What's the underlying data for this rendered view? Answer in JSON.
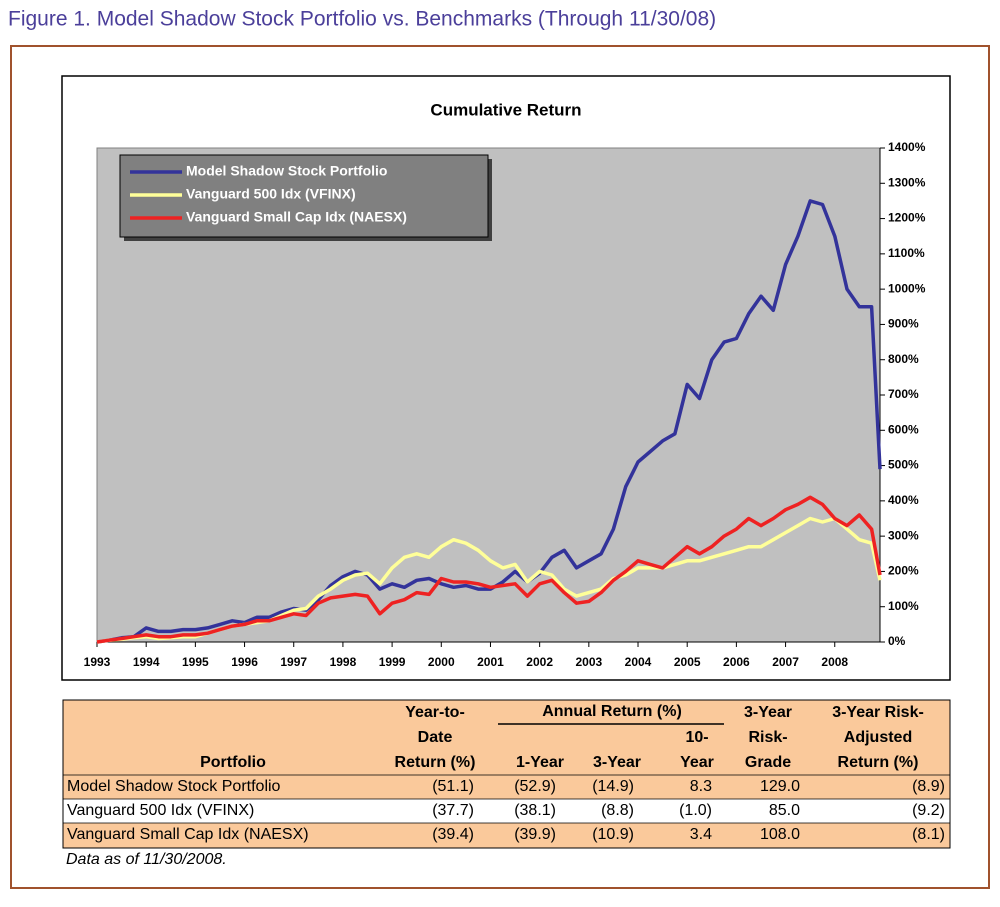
{
  "figure_title": "Figure 1. Model Shadow Stock Portfolio vs. Benchmarks (Through 11/30/08)",
  "chart_data": {
    "type": "line",
    "title": "Cumulative Return",
    "x": [
      1993,
      1993.25,
      1993.5,
      1993.75,
      1994,
      1994.25,
      1994.5,
      1994.75,
      1995,
      1995.25,
      1995.5,
      1995.75,
      1996,
      1996.25,
      1996.5,
      1996.75,
      1997,
      1997.25,
      1997.5,
      1997.75,
      1998,
      1998.25,
      1998.5,
      1998.75,
      1999,
      1999.25,
      1999.5,
      1999.75,
      2000,
      2000.25,
      2000.5,
      2000.75,
      2001,
      2001.25,
      2001.5,
      2001.75,
      2002,
      2002.25,
      2002.5,
      2002.75,
      2003,
      2003.25,
      2003.5,
      2003.75,
      2004,
      2004.25,
      2004.5,
      2004.75,
      2005,
      2005.25,
      2005.5,
      2005.75,
      2006,
      2006.25,
      2006.5,
      2006.75,
      2007,
      2007.25,
      2007.5,
      2007.75,
      2008,
      2008.25,
      2008.5,
      2008.75,
      2008.92
    ],
    "xlim": [
      1993,
      2008.92
    ],
    "xticks": [
      1993,
      1994,
      1995,
      1996,
      1997,
      1998,
      1999,
      2000,
      2001,
      2002,
      2003,
      2004,
      2005,
      2006,
      2007,
      2008
    ],
    "ylim": [
      0,
      1400
    ],
    "yticks": [
      {
        "value": 0,
        "label": "0%"
      },
      {
        "value": 100,
        "label": "100%"
      },
      {
        "value": 200,
        "label": "200%"
      },
      {
        "value": 300,
        "label": "300%"
      },
      {
        "value": 400,
        "label": "400%"
      },
      {
        "value": 500,
        "label": "500%"
      },
      {
        "value": 600,
        "label": "600%"
      },
      {
        "value": 700,
        "label": "700%"
      },
      {
        "value": 800,
        "label": "800%"
      },
      {
        "value": 900,
        "label": "900%"
      },
      {
        "value": 1000,
        "label": "1000%"
      },
      {
        "value": 1100,
        "label": "1100%"
      },
      {
        "value": 1200,
        "label": "1200%"
      },
      {
        "value": 1300,
        "label": "1300%"
      },
      {
        "value": 1400,
        "label": "1400%"
      }
    ],
    "grid": false,
    "legend": "top-left",
    "series": [
      {
        "name": "Model Shadow Stock Portfolio",
        "color": "#33339a",
        "values": [
          0,
          5,
          12,
          15,
          40,
          30,
          30,
          35,
          35,
          40,
          50,
          60,
          55,
          70,
          70,
          85,
          95,
          90,
          120,
          160,
          185,
          200,
          190,
          150,
          165,
          155,
          175,
          180,
          165,
          155,
          160,
          150,
          150,
          170,
          200,
          170,
          195,
          240,
          260,
          210,
          230,
          250,
          320,
          440,
          510,
          540,
          570,
          590,
          730,
          690,
          800,
          850,
          860,
          930,
          980,
          940,
          1070,
          1150,
          1250,
          1240,
          1150,
          1000,
          950,
          950,
          490
        ]
      },
      {
        "name": "Vanguard 500 Idx (VFINX)",
        "color": "#ffff99",
        "values": [
          0,
          5,
          8,
          12,
          15,
          10,
          12,
          15,
          15,
          25,
          35,
          45,
          50,
          55,
          60,
          75,
          90,
          95,
          130,
          150,
          175,
          190,
          195,
          165,
          210,
          240,
          250,
          240,
          270,
          290,
          280,
          260,
          230,
          210,
          220,
          170,
          200,
          190,
          150,
          130,
          140,
          150,
          180,
          190,
          210,
          210,
          210,
          220,
          230,
          230,
          240,
          250,
          260,
          270,
          270,
          290,
          310,
          330,
          350,
          340,
          350,
          320,
          290,
          280,
          175
        ]
      },
      {
        "name": "Vanguard Small Cap Idx (NAESX)",
        "color": "#ee2222",
        "values": [
          0,
          5,
          10,
          15,
          20,
          15,
          15,
          20,
          20,
          25,
          35,
          45,
          50,
          60,
          60,
          70,
          80,
          75,
          110,
          125,
          130,
          135,
          130,
          80,
          110,
          120,
          140,
          135,
          180,
          170,
          170,
          165,
          155,
          160,
          165,
          130,
          165,
          175,
          140,
          110,
          115,
          140,
          175,
          200,
          230,
          220,
          210,
          240,
          270,
          250,
          270,
          300,
          320,
          350,
          330,
          350,
          375,
          390,
          410,
          390,
          350,
          330,
          360,
          320,
          190
        ]
      }
    ]
  },
  "table": {
    "header": {
      "portfolio": "Portfolio",
      "ytd": [
        "Year-to-",
        "Date",
        "Return (%)"
      ],
      "annual": "Annual Return (%)",
      "one_year": "1-Year",
      "three_year": "3-Year",
      "ten_year": [
        "10-",
        "Year"
      ],
      "risk_grade": [
        "3-Year",
        "Risk-",
        "Grade"
      ],
      "risk_adjusted": [
        "3-Year Risk-",
        "Adjusted",
        "Return (%)"
      ]
    },
    "rows": [
      [
        "Model Shadow Stock Portfolio",
        "(51.1)",
        "(52.9)",
        "(14.9)",
        "8.3",
        "129.0",
        "(8.9)"
      ],
      [
        "Vanguard 500 Idx (VFINX)",
        "(37.7)",
        "(38.1)",
        "(8.8)",
        "(1.0)",
        "85.0",
        "(9.2)"
      ],
      [
        "Vanguard Small Cap Idx (NAESX)",
        "(39.4)",
        "(39.9)",
        "(10.9)",
        "3.4",
        "108.0",
        "(8.1)"
      ]
    ],
    "note": "Data as of 11/30/2008."
  }
}
